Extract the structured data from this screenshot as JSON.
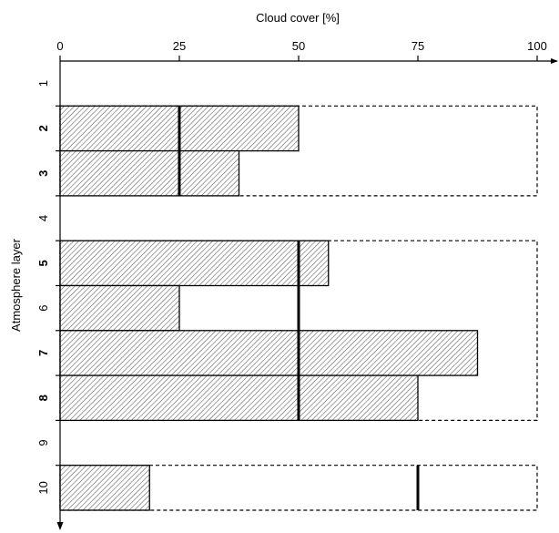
{
  "chart_data": {
    "type": "bar",
    "orientation": "horizontal",
    "xlabel": "Cloud cover [%]",
    "ylabel": "Atmosphere layer",
    "xlim": [
      0,
      100
    ],
    "xticks": [
      "0",
      "25",
      "50",
      "75",
      "100"
    ],
    "categories": [
      "1",
      "2",
      "3",
      "4",
      "5",
      "6",
      "7",
      "8",
      "9",
      "10"
    ],
    "bold_categories": [
      "2",
      "3",
      "5",
      "7",
      "8"
    ],
    "series": [
      {
        "values": [
          null,
          50,
          37.5,
          null,
          56.25,
          25,
          87.5,
          75,
          null,
          18.75
        ],
        "fill": "hatched"
      }
    ],
    "markers": [
      null,
      25,
      25,
      null,
      50,
      50,
      50,
      50,
      null,
      75
    ],
    "envelopes": [
      {
        "from": "2",
        "to": "3",
        "value": 100
      },
      {
        "from": "5",
        "to": "8",
        "value": 100
      },
      {
        "from": "10",
        "to": "10",
        "value": 100
      }
    ]
  }
}
